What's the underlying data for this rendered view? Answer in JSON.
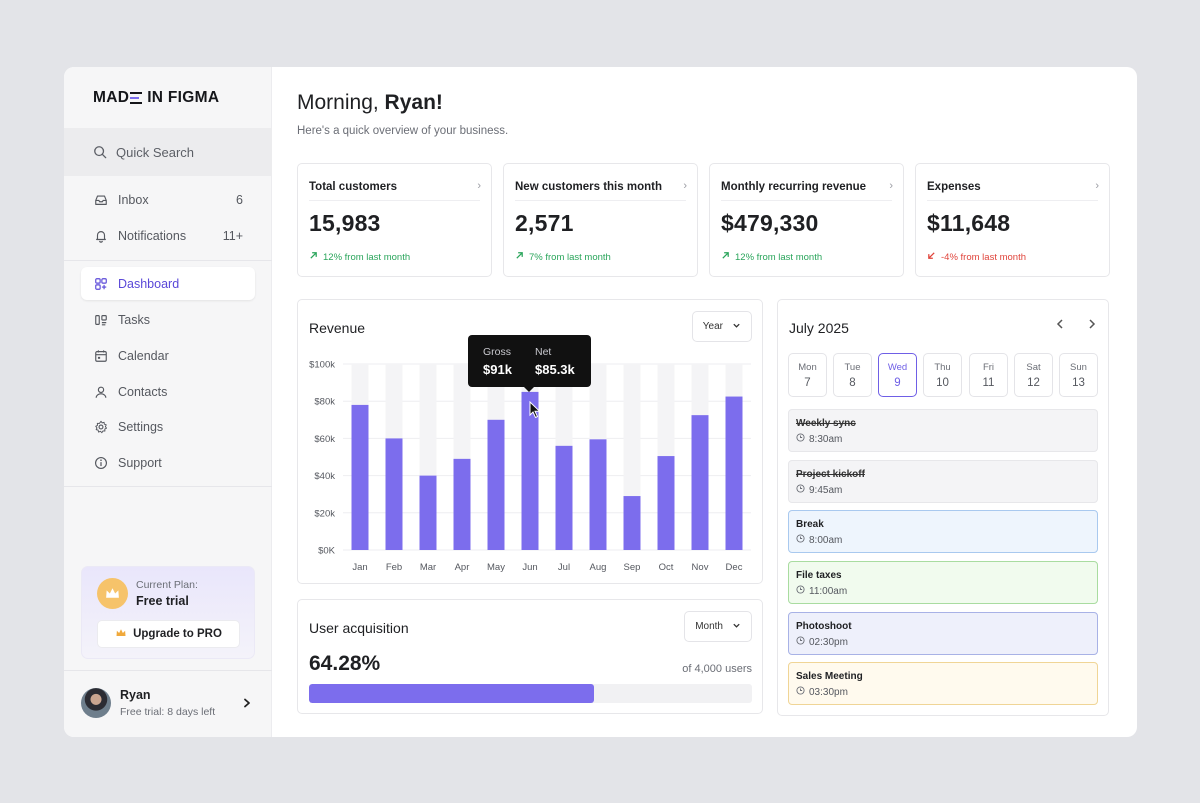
{
  "brand": {
    "logo_left": "MAD",
    "logo_right": "IN FIGMA"
  },
  "sidebar": {
    "search_label": "Quick Search",
    "inbox": {
      "label": "Inbox",
      "count": "6"
    },
    "notifications": {
      "label": "Notifications",
      "count": "11+"
    },
    "items": [
      {
        "label": "Dashboard",
        "icon": "grid-icon",
        "active": true
      },
      {
        "label": "Tasks",
        "icon": "tasks-icon"
      },
      {
        "label": "Calendar",
        "icon": "calendar-icon"
      },
      {
        "label": "Contacts",
        "icon": "user-icon"
      },
      {
        "label": "Settings",
        "icon": "gear-icon"
      },
      {
        "label": "Support",
        "icon": "info-icon"
      }
    ],
    "plan": {
      "label": "Current Plan:",
      "value": "Free trial",
      "upgrade_label": "Upgrade to PRO"
    },
    "user": {
      "name": "Ryan",
      "status": "Free trial: 8 days left"
    }
  },
  "header": {
    "greeting": "Morning,",
    "name": "Ryan!",
    "subtitle": "Here's a quick overview of your business."
  },
  "stats": [
    {
      "title": "Total customers",
      "value": "15,983",
      "delta": "12% from last month",
      "trend": "up"
    },
    {
      "title": "New customers this month",
      "value": "2,571",
      "delta": "7% from last month",
      "trend": "up"
    },
    {
      "title": "Monthly recurring revenue",
      "value": "$479,330",
      "delta": "12% from last month",
      "trend": "up"
    },
    {
      "title": "Expenses",
      "value": "$11,648",
      "delta": "-4% from last month",
      "trend": "down"
    }
  ],
  "revenue": {
    "title": "Revenue",
    "period": "Year",
    "tooltip": {
      "gross_label": "Gross",
      "gross_value": "$91k",
      "net_label": "Net",
      "net_value": "$85.3k"
    }
  },
  "chart_data": {
    "type": "bar",
    "categories": [
      "Jan",
      "Feb",
      "Mar",
      "Apr",
      "May",
      "Jun",
      "Jul",
      "Aug",
      "Sep",
      "Oct",
      "Nov",
      "Dec"
    ],
    "values": [
      78,
      60,
      40,
      49,
      70,
      85,
      56,
      59.5,
      29,
      50.5,
      72.5,
      82.5
    ],
    "max": 100,
    "ylim": [
      0,
      100
    ],
    "yticks": [
      "$0K",
      "$20k",
      "$40k",
      "$60k",
      "$80k",
      "$100k"
    ],
    "bar_color": "#7c6ded",
    "track_color": "#f4f4f6",
    "grid": true
  },
  "acquisition": {
    "title": "User acquisition",
    "period": "Month",
    "percent": "64.28%",
    "percent_value": 64.28,
    "of_users": "of 4,000 users",
    "fill_color": "#7c6ded"
  },
  "calendar": {
    "title": "July 2025",
    "days": [
      {
        "name": "Mon",
        "date": "7"
      },
      {
        "name": "Tue",
        "date": "8"
      },
      {
        "name": "Wed",
        "date": "9",
        "selected": true
      },
      {
        "name": "Thu",
        "date": "10"
      },
      {
        "name": "Fri",
        "date": "11"
      },
      {
        "name": "Sat",
        "date": "12"
      },
      {
        "name": "Sun",
        "date": "13"
      }
    ],
    "events": [
      {
        "name": "Weekly sync",
        "time": "8:30am",
        "done": true,
        "bg": "#f4f4f6",
        "border": "#e7e7ea"
      },
      {
        "name": "Project kickoff",
        "time": "9:45am",
        "done": true,
        "bg": "#f4f4f6",
        "border": "#e7e7ea"
      },
      {
        "name": "Break",
        "time": "8:00am",
        "bg": "#eef5fd",
        "border": "#a9c9ef"
      },
      {
        "name": "File taxes",
        "time": "11:00am",
        "bg": "#f1fbee",
        "border": "#a9dca0"
      },
      {
        "name": "Photoshoot",
        "time": "02:30pm",
        "bg": "#eef0fb",
        "border": "#a8b2e6"
      },
      {
        "name": "Sales Meeting",
        "time": "03:30pm",
        "bg": "#fffaee",
        "border": "#f0d596"
      }
    ]
  }
}
